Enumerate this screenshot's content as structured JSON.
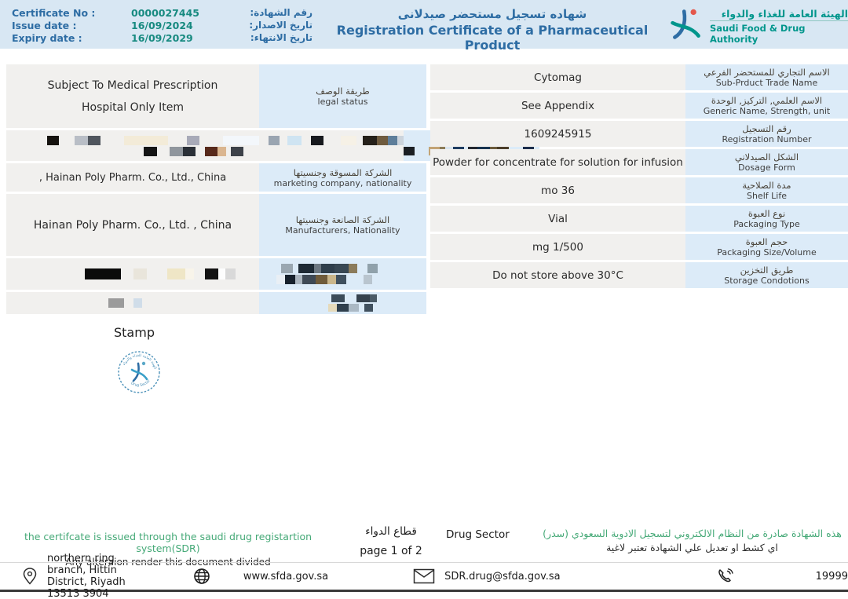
{
  "header": {
    "certificate_rows": [
      {
        "label_en": "Certificate No :",
        "value": "0000027445",
        "label_ar": "رقم الشهادة:"
      },
      {
        "label_en": "Issue date :",
        "value": "16/09/2024",
        "label_ar": "تاريخ الاصدار:"
      },
      {
        "label_en": "Expiry date :",
        "value": "16/09/2029",
        "label_ar": "تاريخ الانتهاء:"
      }
    ],
    "title_ar": "شهاده تسجيل مستحضر صيدلانى",
    "title_en": "Registration Certificate of a Pharmaceutical Product",
    "authority_ar": "الهيئة العامة للغذاء والدواء",
    "authority_en": "Saudi Food & Drug Authority"
  },
  "left_table": {
    "rows": [
      {
        "value_lines": [
          "Subject To Medical Prescription",
          "Hospital Only Item"
        ],
        "label_ar": "طريقة الوصف",
        "label_en": "legal status"
      },
      {
        "redacted": true
      },
      {
        "value_lines": [
          ", Hainan Poly Pharm. Co., Ltd., China"
        ],
        "label_ar": "الشركة المسوقة وجنسيتها",
        "label_en": "marketing company, nationality"
      },
      {
        "value_lines": [
          "Hainan Poly Pharm. Co., Ltd. , China"
        ],
        "label_ar": "الشركة الصانعة وجنسيتها",
        "label_en": "Manufacturers, Nationality"
      },
      {
        "redacted": true
      },
      {
        "redacted": true
      }
    ]
  },
  "right_table": {
    "rows": [
      {
        "value": "Cytomag",
        "label_ar": "الاسم التجاري للمستحضر الفرعي",
        "label_en": "Sub-Prduct Trade Name"
      },
      {
        "value": "See Appendix",
        "label_ar": "الاسم العلمي, التركيز, الوحدة",
        "label_en": "Generic Name, Strength, unit"
      },
      {
        "value": "1609245915",
        "label_ar": "رقم التسجيل",
        "label_en": "Registration Number"
      },
      {
        "value": "Powder for concentrate for solution for infusion",
        "label_ar": "الشكل الصيدلاني",
        "label_en": "Dosage Form"
      },
      {
        "value": "mo 36",
        "label_ar": "مدة الصلاحية",
        "label_en": "Shelf Life"
      },
      {
        "value": "Vial",
        "label_ar": "نوع العبوة",
        "label_en": "Packaging Type"
      },
      {
        "value": "mg 1/500",
        "label_ar": "حجم العبوة",
        "label_en": "Packaging Size/Volume"
      },
      {
        "value": "Do not store above 30°C",
        "label_ar": "طريق التخزين",
        "label_en": "Storage Condotions"
      }
    ]
  },
  "stamp": {
    "label": "Stamp",
    "seal_text_bottom": "Drug Sector",
    "seal_text_top": "الهيئة العامة للغذاء والدواء"
  },
  "notes": {
    "en_green": "the certifcate is issued through the saudi drug registartion system(SDR)",
    "en_black": "Any alteraion render this document divided",
    "sector_ar": "قطاع الدواء",
    "page": "page 1 of 2",
    "sector_en": "Drug Sector",
    "ar_green": "هذه الشهادة صادرة من النظام الالكتروني لتسجيل الادوية السعودي (سدر)",
    "ar_black": "اي كشط او تعديل علي الشهادة تعتبر لاغية"
  },
  "footer": {
    "address": "northern ring branch, Hittin District, Riyadh 13513 3904",
    "website": "www.sfda.gov.sa",
    "email": "SDR.drug@sfda.gov.sa",
    "phone": "19999"
  },
  "colors": {
    "header_band": "#d8e7f3",
    "title_blue": "#2e6da4",
    "value_teal": "#178a80",
    "logo_teal": "#00968c",
    "label_cell_bg": "#dcebf8",
    "value_cell_bg": "#f1f0ee",
    "note_green": "#45a977"
  },
  "mosaics": {
    "r2v": {
      "h": 12,
      "lines": [
        [
          [
            52,
            ""
          ],
          [
            15,
            "#16130f"
          ],
          [
            20,
            ""
          ],
          [
            17,
            "#b9bec6"
          ],
          [
            16,
            "#50565e"
          ],
          [
            30,
            ""
          ],
          [
            56,
            "#f3ebd8"
          ],
          [
            24,
            ""
          ],
          [
            16,
            "#a8aab8"
          ],
          [
            30,
            ""
          ],
          [
            46,
            "#f3f7fb"
          ],
          [
            12,
            ""
          ],
          [
            14,
            "#9aa5b1"
          ],
          [
            10,
            ""
          ],
          [
            18,
            "#cfe4f2"
          ],
          [
            12,
            ""
          ],
          [
            16,
            "#17191d"
          ],
          [
            22,
            ""
          ],
          [
            20,
            "#f6f1e6"
          ],
          [
            8,
            ""
          ],
          [
            18,
            "#26211a"
          ],
          [
            14,
            "#6f5b3e"
          ],
          [
            12,
            "#5e7e9a"
          ],
          [
            8,
            "#ccd4dc"
          ]
        ],
        [
          [
            175,
            ""
          ],
          [
            17,
            "#141414"
          ],
          [
            16,
            ""
          ],
          [
            17,
            "#90969d"
          ],
          [
            16,
            "#2b3037"
          ],
          [
            12,
            ""
          ],
          [
            16,
            "#57291a"
          ],
          [
            11,
            "#dab58f"
          ],
          [
            6,
            ""
          ],
          [
            16,
            "#3d4249"
          ]
        ]
      ]
    },
    "r2l": {
      "h": 11,
      "lines": [
        [
          [
            48,
            ""
          ],
          [
            50,
            "#e8f1f8"
          ],
          [
            20,
            ""
          ],
          [
            15,
            "#9aa5af"
          ],
          [
            40,
            ""
          ]
        ],
        [
          [
            14,
            "#1b1e23"
          ],
          [
            18,
            ""
          ],
          [
            14,
            "#c3a475"
          ],
          [
            7,
            "#8b7b56"
          ],
          [
            10,
            "#d9e5ef"
          ],
          [
            14,
            "#1e3b60"
          ],
          [
            5,
            ""
          ],
          [
            12,
            "#24282f"
          ],
          [
            16,
            "#17334f"
          ],
          [
            9,
            "#6c5b3b"
          ],
          [
            15,
            "#4b3d29"
          ],
          [
            18,
            ""
          ],
          [
            14,
            "#1c2d4b"
          ]
        ]
      ]
    },
    "r5v": {
      "h": 14,
      "lines": [
        [
          [
            100,
            ""
          ],
          [
            46,
            "#0b0b0b"
          ],
          [
            16,
            ""
          ],
          [
            17,
            "#e9e5db"
          ],
          [
            26,
            ""
          ],
          [
            23,
            "#efe6c6"
          ],
          [
            11,
            "#f8f4ea"
          ],
          [
            14,
            ""
          ],
          [
            17,
            "#131313"
          ],
          [
            9,
            "#fdfdfd"
          ],
          [
            13,
            "#d9d9d9"
          ]
        ]
      ]
    },
    "r5l": {
      "h": 12,
      "lines": [
        [
          [
            28,
            ""
          ],
          [
            15,
            "#9aa7b1"
          ],
          [
            7,
            ""
          ],
          [
            20,
            "#1d2934"
          ],
          [
            9,
            "#6c7781"
          ],
          [
            17,
            "#2f3e4b"
          ],
          [
            18,
            "#384753"
          ],
          [
            11,
            "#8b7b5b"
          ],
          [
            13,
            ""
          ],
          [
            13,
            "#90a1ab"
          ]
        ],
        [
          [
            22,
            ""
          ],
          [
            11,
            "#e9eff5"
          ],
          [
            13,
            "#17212d"
          ],
          [
            9,
            "#abb5bf"
          ],
          [
            17,
            "#3e4955"
          ],
          [
            15,
            "#6f5b3b"
          ],
          [
            11,
            "#cab68b"
          ],
          [
            13,
            "#40505e"
          ],
          [
            22,
            ""
          ],
          [
            11,
            "#b9c5cf"
          ]
        ]
      ]
    },
    "r6v": {
      "h": 12,
      "lines": [
        [
          [
            130,
            ""
          ],
          [
            20,
            "#9b9b9b"
          ],
          [
            12,
            ""
          ],
          [
            11,
            "#d0dde9"
          ]
        ]
      ]
    },
    "r6l": {
      "h": 10,
      "lines": [
        [
          [
            92,
            ""
          ],
          [
            17,
            "#3b4b59"
          ],
          [
            15,
            ""
          ],
          [
            17,
            "#36424e"
          ],
          [
            9,
            "#4b5b67"
          ]
        ],
        [
          [
            88,
            ""
          ],
          [
            11,
            "#e5dabb"
          ],
          [
            15,
            "#2f3f4d"
          ],
          [
            13,
            "#abb9c5"
          ],
          [
            7,
            ""
          ],
          [
            11,
            "#40505e"
          ]
        ]
      ]
    }
  }
}
